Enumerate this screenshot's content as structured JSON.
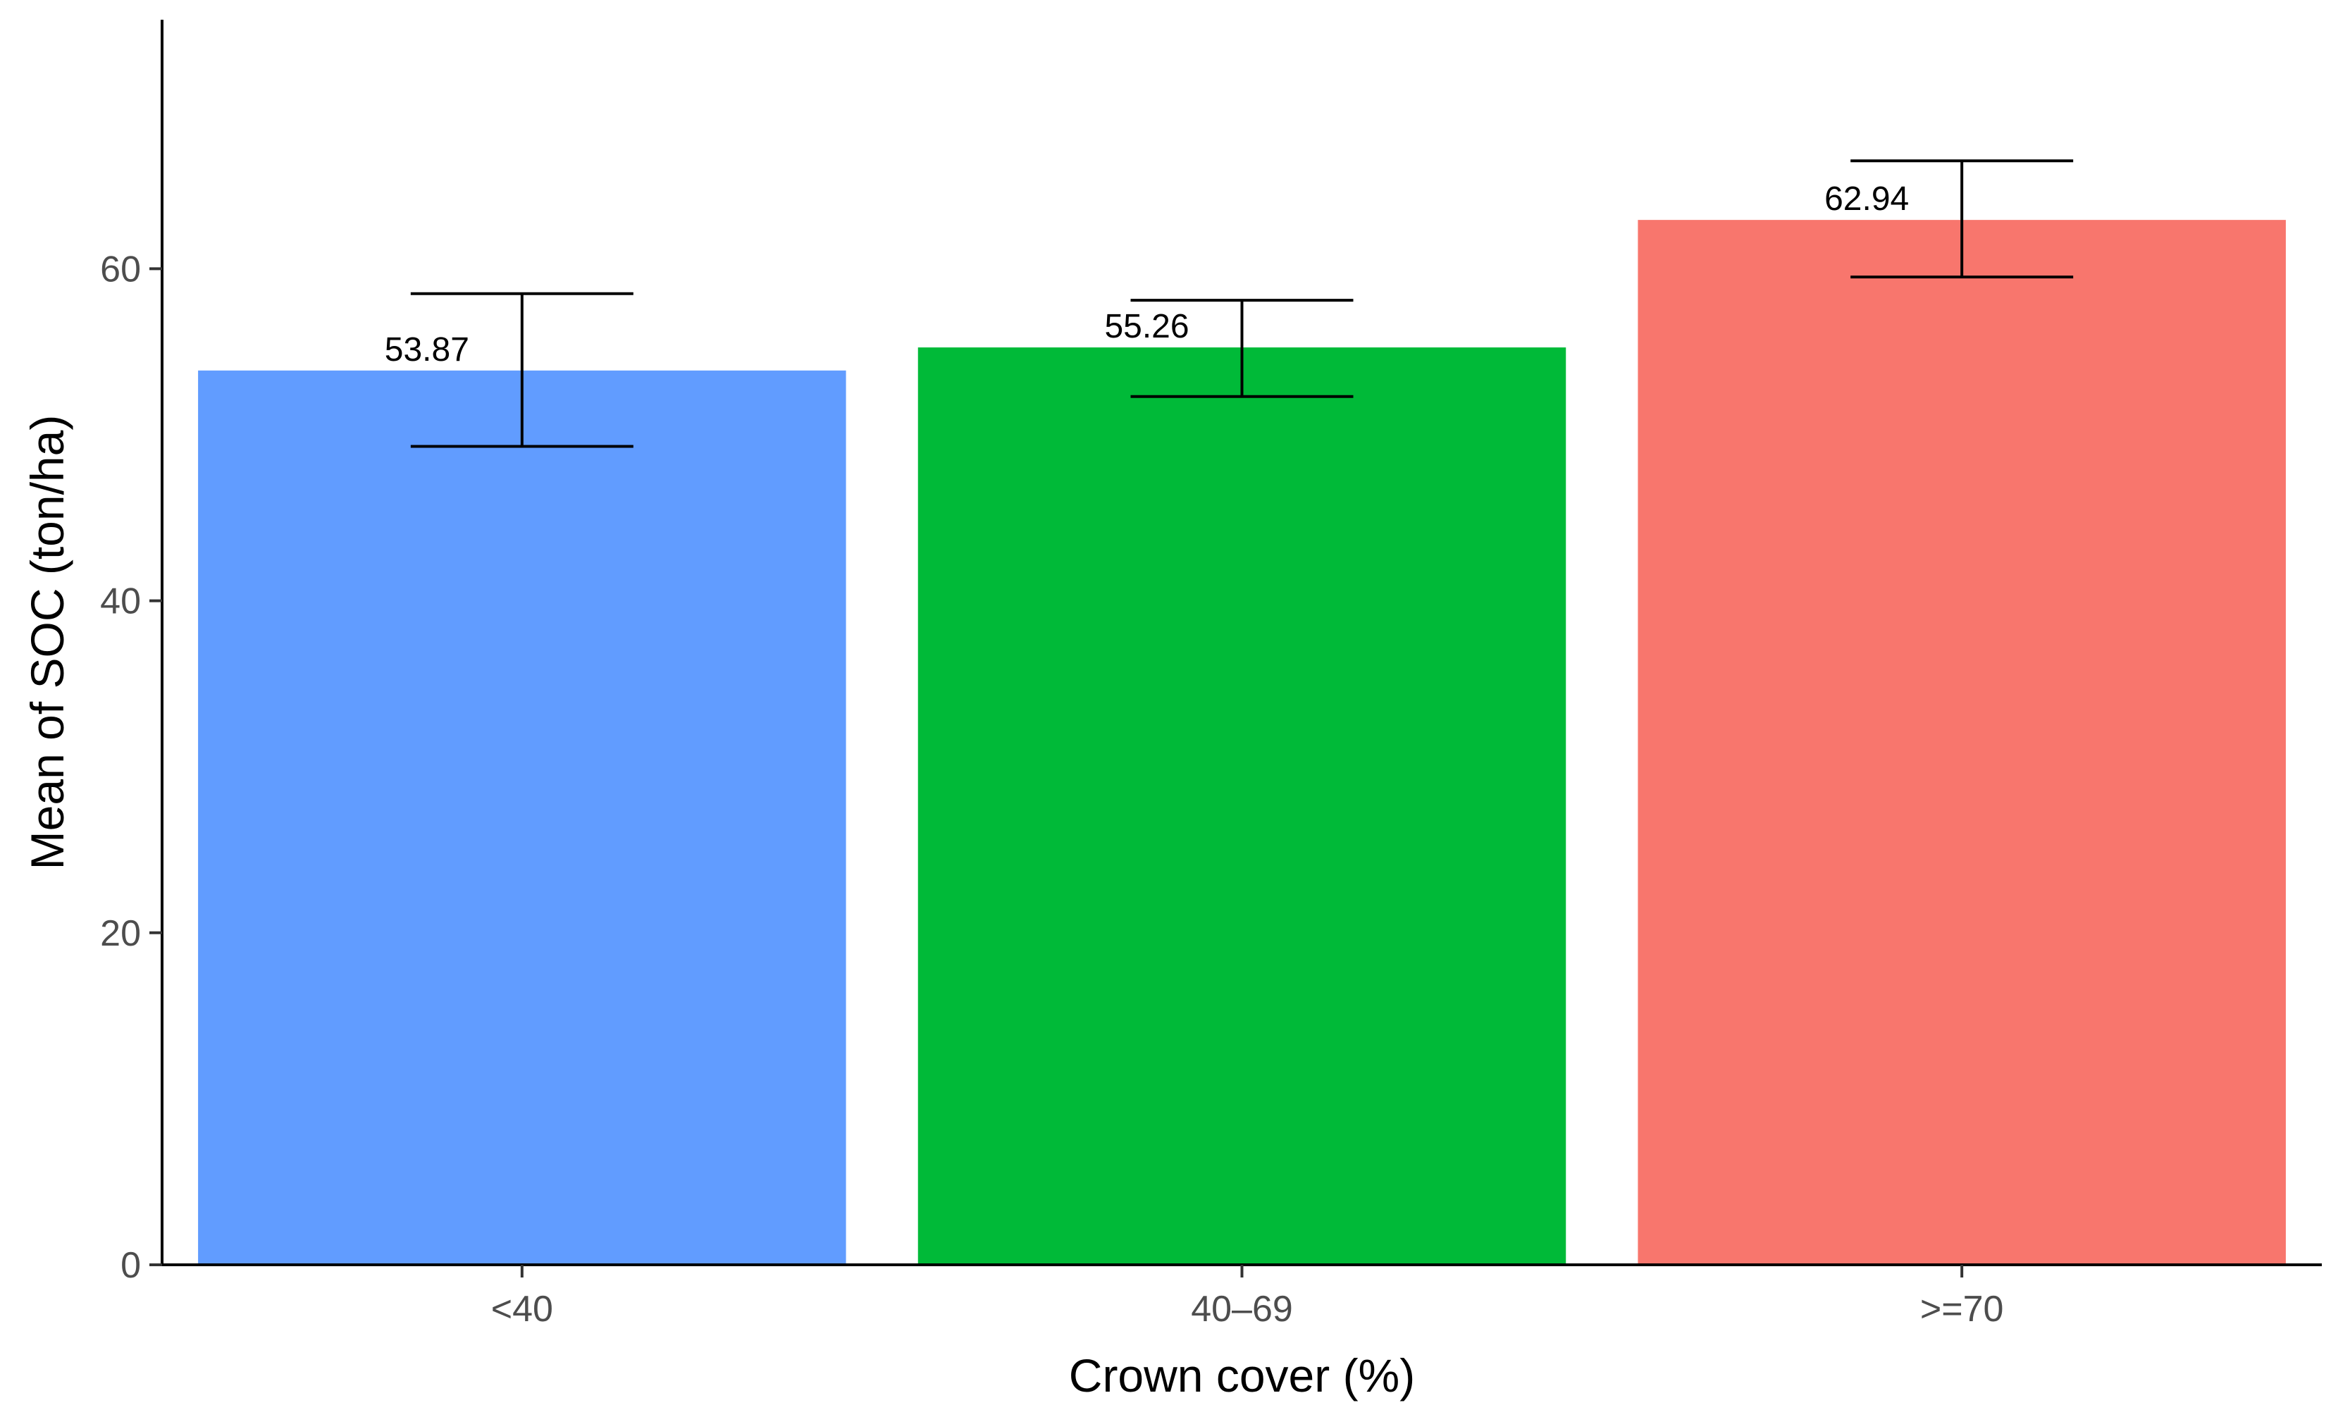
{
  "chart_data": {
    "type": "bar",
    "categories": [
      "<40",
      "40–69",
      ">=70"
    ],
    "values": [
      53.87,
      55.26,
      62.94
    ],
    "value_labels": [
      "53.87",
      "55.26",
      "62.94"
    ],
    "error_bars": [
      {
        "lower": 49.3,
        "upper": 58.5
      },
      {
        "lower": 52.3,
        "upper": 58.1
      },
      {
        "lower": 59.5,
        "upper": 66.5
      }
    ],
    "colors": [
      "#619CFF",
      "#00BA38",
      "#F8766D"
    ],
    "xlabel": "Crown cover (%)",
    "ylabel": "Mean of SOC (ton/ha)",
    "ylim": [
      0,
      75
    ],
    "yticks": [
      0,
      20,
      40,
      60
    ],
    "grid": false,
    "legend": "none"
  }
}
